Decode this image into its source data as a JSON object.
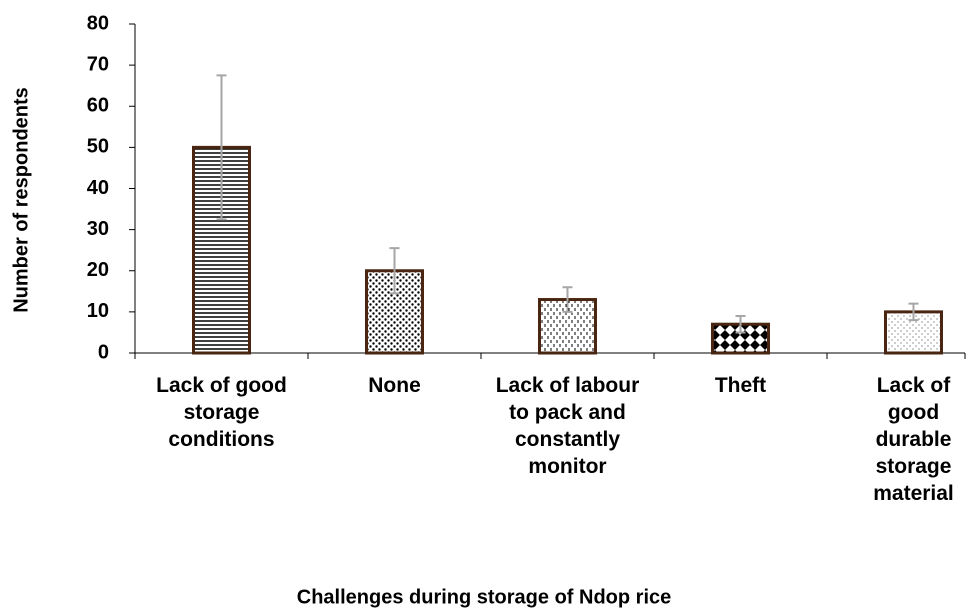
{
  "chart_data": {
    "type": "bar",
    "x_label": "Challenges during storage of Ndop rice",
    "y_label": "Number of respondents",
    "categories": [
      "Lack of good storage conditions",
      "None",
      "Lack of labour to pack and constantly monitor",
      "Theft",
      "Lack of good durable storage material"
    ],
    "values": [
      50,
      20,
      13,
      7,
      10
    ],
    "errors": [
      17.5,
      5.5,
      3,
      2,
      2
    ],
    "color": "#4a2511",
    "error_color": "#a6a6a6",
    "ylim": [
      0,
      80
    ],
    "yticks": [
      0,
      10,
      20,
      30,
      40,
      50,
      60,
      70,
      80
    ]
  }
}
